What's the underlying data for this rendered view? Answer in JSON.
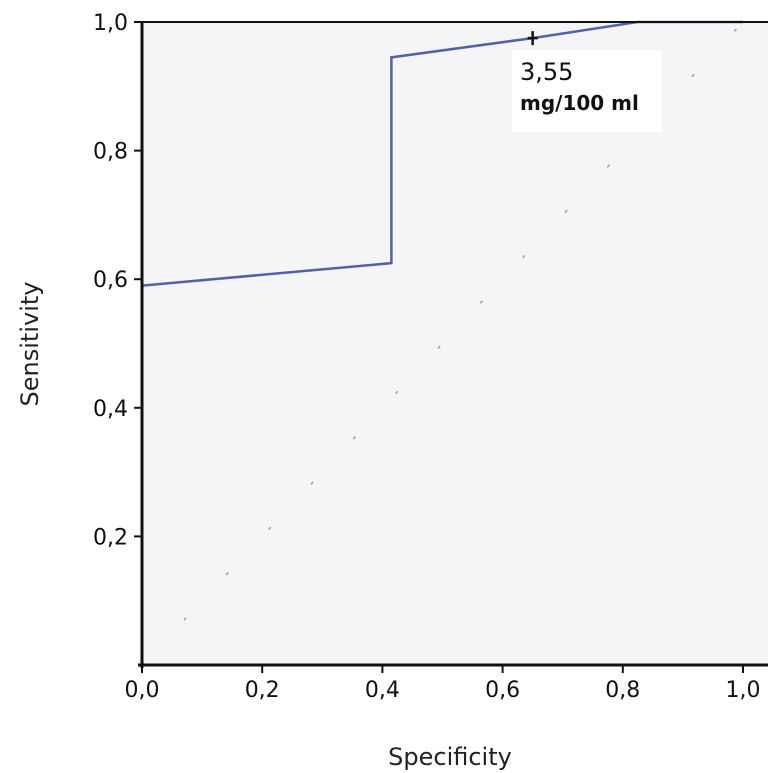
{
  "chart_data": {
    "type": "line",
    "title": "",
    "xlabel": "Specificity",
    "ylabel": "Sensitivity",
    "xlim": [
      0,
      1
    ],
    "ylim": [
      0,
      1
    ],
    "x_ticks": [
      "0,0",
      "0,2",
      "0,4",
      "0,6",
      "0,8",
      "1,0"
    ],
    "x_tick_values": [
      0,
      0.2,
      0.4,
      0.6,
      0.8,
      1.0
    ],
    "y_ticks": [
      "0,2",
      "0,4",
      "0,6",
      "0,8",
      "1,0"
    ],
    "y_tick_values": [
      0.2,
      0.4,
      0.6,
      0.8,
      1.0
    ],
    "grid": false,
    "series": [
      {
        "color": "#5560a8",
        "x": [
          0.0,
          0.0,
          0.415,
          0.415,
          0.65,
          0.825,
          1.0
        ],
        "y": [
          0.0,
          0.59,
          0.625,
          0.945,
          0.975,
          1.0,
          1.0
        ]
      }
    ],
    "reference_line": {
      "x": [
        0,
        1
      ],
      "y": [
        0,
        1
      ],
      "style": "dotted"
    },
    "annotation": {
      "line1": "3,55",
      "line2": "mg/100 ml",
      "point_x": 0.65,
      "point_y": 0.975
    },
    "colors": {
      "plot_background": "#f4f5f7",
      "frame": "#111111",
      "curve": "#5560a8"
    }
  }
}
